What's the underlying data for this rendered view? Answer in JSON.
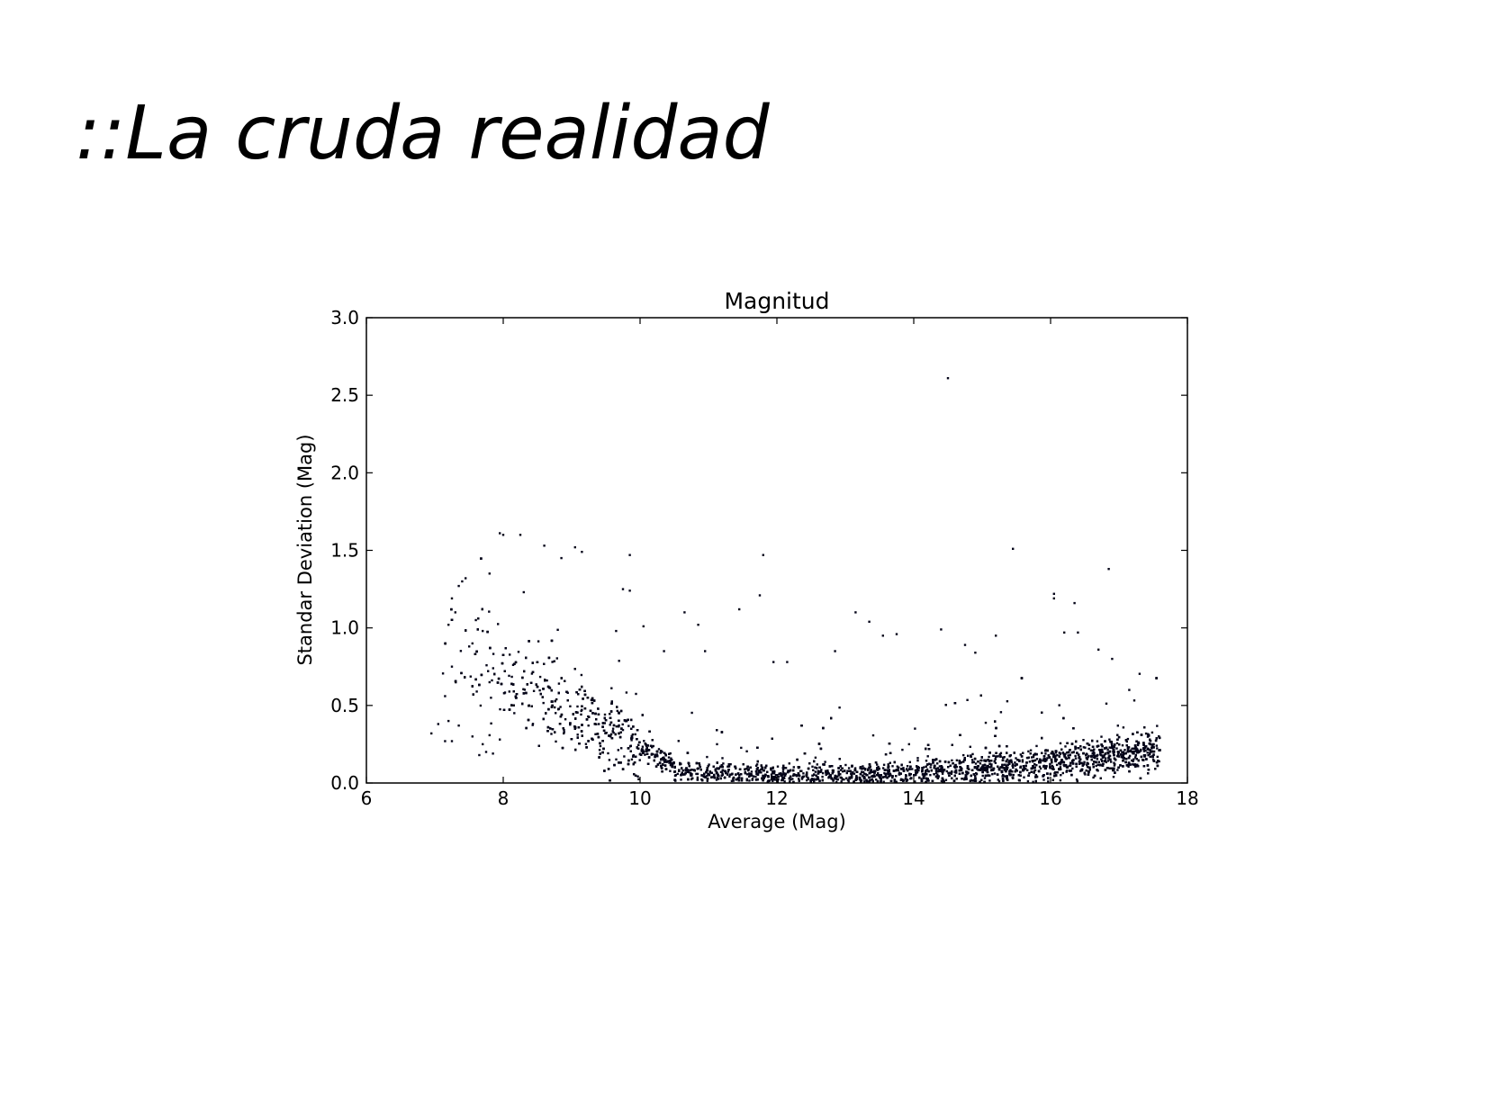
{
  "slide": {
    "title": "::La cruda realidad"
  },
  "chart_data": {
    "type": "scatter",
    "title": "Magnitud",
    "xlabel": "Average (Mag)",
    "ylabel": "Standar Deviation (Mag)",
    "xlim": [
      6,
      18
    ],
    "ylim": [
      0.0,
      3.0
    ],
    "xticks": [
      "6",
      "8",
      "10",
      "12",
      "14",
      "16",
      "18"
    ],
    "yticks": [
      "0.0",
      "0.5",
      "1.0",
      "1.5",
      "2.0",
      "2.5",
      "3.0"
    ],
    "grid": false,
    "marker_color": "#050519",
    "series": [
      {
        "values_description_not_rendered": null,
        "points": [
          [
            14.5,
            2.61
          ],
          [
            7.95,
            1.61
          ],
          [
            8.0,
            1.6
          ],
          [
            8.25,
            1.6
          ],
          [
            8.6,
            1.53
          ],
          [
            9.05,
            1.52
          ],
          [
            9.15,
            1.49
          ],
          [
            9.85,
            1.47
          ],
          [
            11.8,
            1.47
          ],
          [
            15.45,
            1.51
          ],
          [
            16.85,
            1.38
          ],
          [
            8.85,
            1.45
          ],
          [
            7.8,
            1.35
          ],
          [
            7.45,
            1.32
          ],
          [
            7.4,
            1.3
          ],
          [
            7.35,
            1.27
          ],
          [
            7.25,
            1.19
          ],
          [
            7.3,
            1.1
          ],
          [
            7.2,
            1.02
          ],
          [
            7.6,
            1.05
          ],
          [
            7.7,
            0.98
          ],
          [
            7.55,
            0.9
          ],
          [
            7.25,
            0.75
          ],
          [
            7.15,
            0.56
          ],
          [
            7.2,
            0.4
          ],
          [
            7.05,
            0.38
          ],
          [
            6.95,
            0.32
          ],
          [
            7.15,
            0.27
          ],
          [
            7.25,
            0.27
          ],
          [
            7.35,
            0.37
          ],
          [
            7.55,
            0.3
          ],
          [
            7.7,
            0.25
          ],
          [
            7.75,
            0.2
          ],
          [
            7.85,
            0.19
          ],
          [
            7.65,
            0.18
          ],
          [
            7.95,
            0.28
          ],
          [
            9.85,
            1.24
          ],
          [
            9.75,
            1.25
          ],
          [
            11.45,
            1.12
          ],
          [
            11.75,
            1.21
          ],
          [
            10.65,
            1.1
          ],
          [
            10.85,
            1.02
          ],
          [
            13.15,
            1.1
          ],
          [
            13.35,
            1.04
          ],
          [
            13.55,
            0.95
          ],
          [
            13.75,
            0.96
          ],
          [
            14.4,
            0.99
          ],
          [
            15.2,
            0.95
          ],
          [
            16.05,
            1.22
          ],
          [
            16.05,
            1.19
          ],
          [
            16.35,
            1.16
          ],
          [
            16.2,
            0.97
          ],
          [
            16.4,
            0.97
          ],
          [
            16.7,
            0.86
          ],
          [
            16.9,
            0.8
          ],
          [
            17.15,
            0.6
          ],
          [
            10.05,
            1.01
          ],
          [
            10.35,
            0.85
          ],
          [
            10.95,
            0.85
          ],
          [
            11.95,
            0.78
          ],
          [
            12.15,
            0.78
          ],
          [
            12.85,
            0.85
          ],
          [
            14.75,
            0.89
          ],
          [
            14.9,
            0.84
          ],
          [
            9.65,
            0.98
          ],
          [
            8.3,
            1.23
          ]
        ]
      }
    ]
  }
}
